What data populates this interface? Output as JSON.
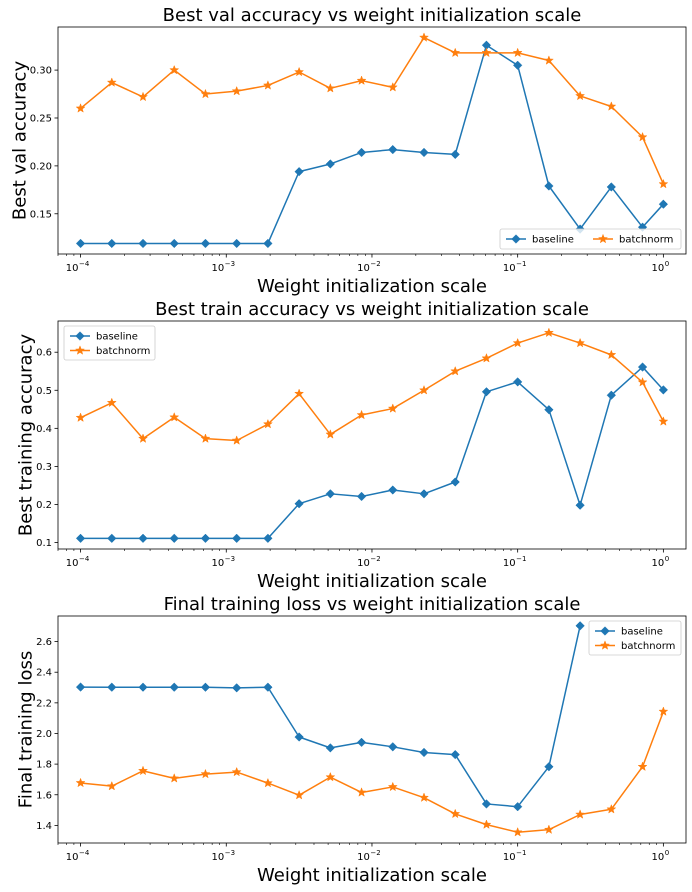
{
  "colors": {
    "baseline": "#1f77b4",
    "batchnorm": "#ff7f0e"
  },
  "chart_data": [
    {
      "type": "line",
      "title": "Best val accuracy vs weight initialization scale",
      "xlabel": "Weight initialization scale",
      "ylabel": "Best val accuracy",
      "xscale": "log",
      "xlim": [
        7e-05,
        1.43
      ],
      "ylim": [
        0.108,
        0.345
      ],
      "yticks": [
        0.15,
        0.2,
        0.25,
        0.3
      ],
      "ytick_labels": [
        "0.15",
        "0.20",
        "0.25",
        "0.30"
      ],
      "xticks": [
        0.0001,
        0.001,
        0.01,
        0.1,
        1
      ],
      "xtick_labels": [
        [
          "10",
          "−4"
        ],
        [
          "10",
          "−3"
        ],
        [
          "10",
          "−2"
        ],
        [
          "10",
          "−1"
        ],
        [
          "10",
          "0"
        ]
      ],
      "grid": false,
      "legend": {
        "position": "lower-right",
        "ncol": 2
      },
      "x": [
        0.0001,
        0.000163789,
        0.00026827,
        0.000439397,
        0.000719686,
        0.00117877,
        0.0019307,
        0.00316228,
        0.00517947,
        0.00848343,
        0.013895,
        0.0227585,
        0.0372759,
        0.061054,
        0.1,
        0.163789,
        0.26827,
        0.439397,
        0.719686,
        1.0
      ],
      "series": [
        {
          "name": "baseline",
          "marker": "diamond",
          "values": [
            0.119,
            0.119,
            0.119,
            0.119,
            0.119,
            0.119,
            0.119,
            0.194,
            0.202,
            0.214,
            0.217,
            0.214,
            0.212,
            0.326,
            0.305,
            0.179,
            0.134,
            0.178,
            0.136,
            0.16
          ]
        },
        {
          "name": "batchnorm",
          "marker": "star",
          "values": [
            0.26,
            0.287,
            0.272,
            0.3,
            0.275,
            0.278,
            0.284,
            0.298,
            0.281,
            0.289,
            0.282,
            0.334,
            0.318,
            0.318,
            0.318,
            0.31,
            0.273,
            0.262,
            0.23,
            0.181
          ]
        }
      ]
    },
    {
      "type": "line",
      "title": "Best train accuracy vs weight initialization scale",
      "xlabel": "Weight initialization scale",
      "ylabel": "Best training accuracy",
      "xscale": "log",
      "xlim": [
        7e-05,
        1.43
      ],
      "ylim": [
        0.083,
        0.682
      ],
      "yticks": [
        0.1,
        0.2,
        0.3,
        0.4,
        0.5,
        0.6
      ],
      "ytick_labels": [
        "0.1",
        "0.2",
        "0.3",
        "0.4",
        "0.5",
        "0.6"
      ],
      "xticks": [
        0.0001,
        0.001,
        0.01,
        0.1,
        1
      ],
      "xtick_labels": [
        [
          "10",
          "−4"
        ],
        [
          "10",
          "−3"
        ],
        [
          "10",
          "−2"
        ],
        [
          "10",
          "−1"
        ],
        [
          "10",
          "0"
        ]
      ],
      "grid": false,
      "legend": {
        "position": "upper-left",
        "ncol": 1
      },
      "x": [
        0.0001,
        0.000163789,
        0.00026827,
        0.000439397,
        0.000719686,
        0.00117877,
        0.0019307,
        0.00316228,
        0.00517947,
        0.00848343,
        0.013895,
        0.0227585,
        0.0372759,
        0.061054,
        0.1,
        0.163789,
        0.26827,
        0.439397,
        0.719686,
        1.0
      ],
      "series": [
        {
          "name": "baseline",
          "marker": "diamond",
          "values": [
            0.111,
            0.111,
            0.111,
            0.111,
            0.111,
            0.111,
            0.111,
            0.202,
            0.228,
            0.221,
            0.238,
            0.228,
            0.259,
            0.496,
            0.522,
            0.449,
            0.198,
            0.487,
            0.561,
            0.501
          ]
        },
        {
          "name": "batchnorm",
          "marker": "star",
          "values": [
            0.428,
            0.467,
            0.373,
            0.429,
            0.373,
            0.368,
            0.411,
            0.491,
            0.384,
            0.435,
            0.452,
            0.5,
            0.55,
            0.584,
            0.624,
            0.651,
            0.624,
            0.593,
            0.521,
            0.418
          ]
        }
      ]
    },
    {
      "type": "line",
      "title": "Final training loss vs weight initialization scale",
      "xlabel": "Weight initialization scale",
      "ylabel": "Final training loss",
      "xscale": "log",
      "xlim": [
        7e-05,
        1.43
      ],
      "ylim": [
        1.285,
        2.767
      ],
      "yticks": [
        1.4,
        1.6,
        1.8,
        2.0,
        2.2,
        2.4,
        2.6
      ],
      "ytick_labels": [
        "1.4",
        "1.6",
        "1.8",
        "2.0",
        "2.2",
        "2.4",
        "2.6"
      ],
      "xticks": [
        0.0001,
        0.001,
        0.01,
        0.1,
        1
      ],
      "xtick_labels": [
        [
          "10",
          "−4"
        ],
        [
          "10",
          "−3"
        ],
        [
          "10",
          "−2"
        ],
        [
          "10",
          "−1"
        ],
        [
          "10",
          "0"
        ]
      ],
      "grid": false,
      "legend": {
        "position": "upper-right",
        "ncol": 1
      },
      "x": [
        0.0001,
        0.000163789,
        0.00026827,
        0.000439397,
        0.000719686,
        0.00117877,
        0.0019307,
        0.00316228,
        0.00517947,
        0.00848343,
        0.013895,
        0.0227585,
        0.0372759,
        0.061054,
        0.1,
        0.163789,
        0.26827,
        0.439397,
        0.719686,
        1.0
      ],
      "series": [
        {
          "name": "baseline",
          "marker": "diamond",
          "values": [
            2.303,
            2.302,
            2.302,
            2.302,
            2.302,
            2.298,
            2.302,
            1.977,
            1.906,
            1.942,
            1.913,
            1.876,
            1.862,
            1.54,
            1.522,
            1.783,
            2.703,
            null,
            null,
            null
          ]
        },
        {
          "name": "batchnorm",
          "marker": "star",
          "values": [
            1.677,
            1.656,
            1.756,
            1.707,
            1.735,
            1.748,
            1.676,
            1.597,
            1.715,
            1.615,
            1.651,
            1.581,
            1.475,
            1.405,
            1.355,
            1.372,
            1.471,
            1.505,
            1.783,
            2.143
          ]
        }
      ]
    }
  ]
}
